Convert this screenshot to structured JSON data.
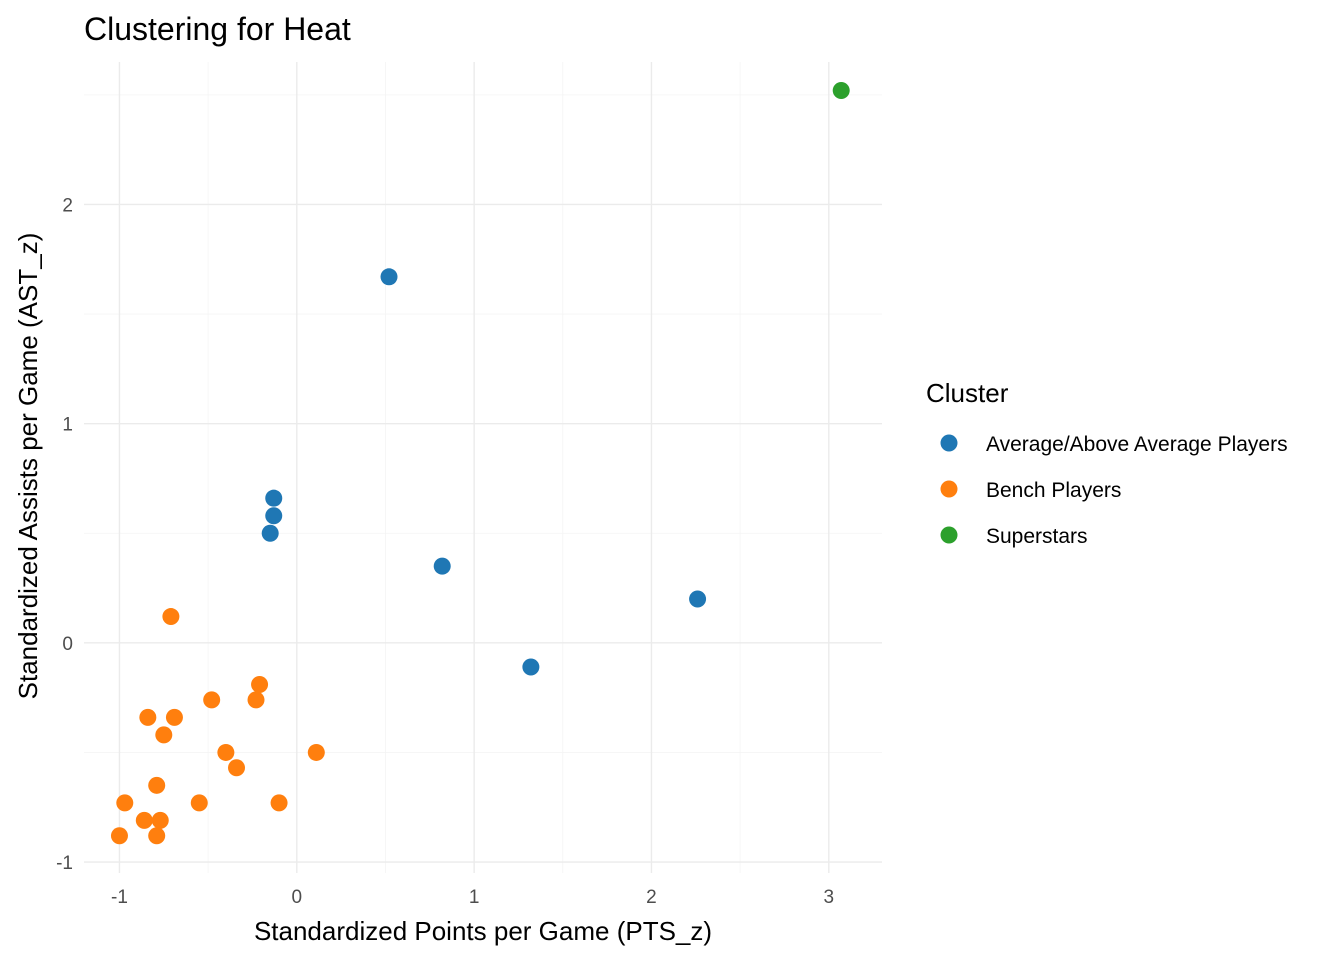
{
  "chart_data": {
    "type": "scatter",
    "title": "Clustering for Heat",
    "xlabel": "Standardized Points per Game (PTS_z)",
    "ylabel": "Standardized Assists per Game (AST_z)",
    "xlim": [
      -1.2,
      3.3
    ],
    "ylim": [
      -1.05,
      2.65
    ],
    "x_ticks": [
      -1,
      0,
      1,
      2,
      3
    ],
    "x_tick_labels": [
      "-1",
      "0",
      "1",
      "2",
      "3"
    ],
    "y_ticks": [
      -1,
      0,
      1,
      2
    ],
    "y_tick_labels": [
      "-1",
      "0",
      "1",
      "2"
    ],
    "grid": true,
    "legend": {
      "title": "Cluster",
      "placement": "right"
    },
    "series": [
      {
        "name": "Average/Above Average Players",
        "color": "#1f77b4",
        "points": [
          {
            "x": 0.52,
            "y": 1.67
          },
          {
            "x": -0.13,
            "y": 0.66
          },
          {
            "x": -0.13,
            "y": 0.58
          },
          {
            "x": -0.15,
            "y": 0.5
          },
          {
            "x": 0.82,
            "y": 0.35
          },
          {
            "x": 2.26,
            "y": 0.2
          },
          {
            "x": 1.32,
            "y": -0.11
          }
        ]
      },
      {
        "name": "Bench Players",
        "color": "#ff7f0e",
        "points": [
          {
            "x": -0.71,
            "y": 0.12
          },
          {
            "x": -0.21,
            "y": -0.19
          },
          {
            "x": -0.48,
            "y": -0.26
          },
          {
            "x": -0.23,
            "y": -0.26
          },
          {
            "x": -0.84,
            "y": -0.34
          },
          {
            "x": -0.69,
            "y": -0.34
          },
          {
            "x": -0.75,
            "y": -0.42
          },
          {
            "x": -0.4,
            "y": -0.5
          },
          {
            "x": 0.11,
            "y": -0.5
          },
          {
            "x": -0.34,
            "y": -0.57
          },
          {
            "x": -0.79,
            "y": -0.65
          },
          {
            "x": -0.97,
            "y": -0.73
          },
          {
            "x": -0.55,
            "y": -0.73
          },
          {
            "x": -0.1,
            "y": -0.73
          },
          {
            "x": -0.86,
            "y": -0.81
          },
          {
            "x": -0.77,
            "y": -0.81
          },
          {
            "x": -1.0,
            "y": -0.88
          },
          {
            "x": -0.79,
            "y": -0.88
          }
        ]
      },
      {
        "name": "Superstars",
        "color": "#2ca02c",
        "points": [
          {
            "x": 3.07,
            "y": 2.52
          }
        ]
      }
    ]
  }
}
